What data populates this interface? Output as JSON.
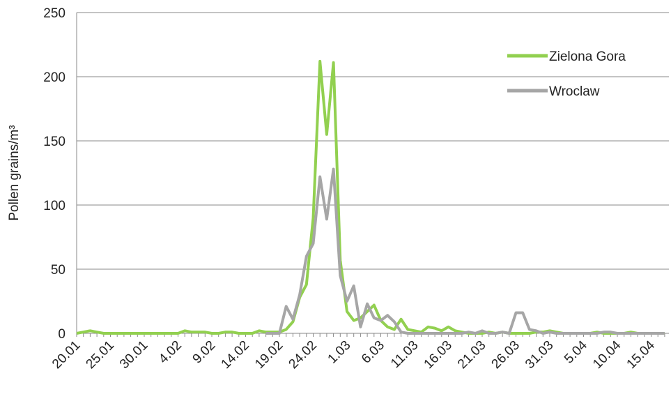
{
  "chart_data": {
    "type": "line",
    "ylabel": "Pollen grains/m³",
    "categories": [
      "20.01",
      null,
      null,
      null,
      null,
      "25.01",
      null,
      null,
      null,
      null,
      "30.01",
      null,
      null,
      null,
      null,
      "4.02",
      null,
      null,
      null,
      null,
      "9.02",
      null,
      null,
      null,
      null,
      "14.02",
      null,
      null,
      null,
      null,
      "19.02",
      null,
      null,
      null,
      null,
      "24.02",
      null,
      null,
      null,
      null,
      "1.03",
      null,
      null,
      null,
      null,
      "6.03",
      null,
      null,
      null,
      null,
      "11.03",
      null,
      null,
      null,
      null,
      "16.03",
      null,
      null,
      null,
      null,
      "21.03",
      null,
      null,
      null,
      null,
      "26.03",
      null,
      null,
      null,
      null,
      "31.03",
      null,
      null,
      null,
      null,
      "5.04",
      null,
      null,
      null,
      null,
      "10.04",
      null,
      null,
      null,
      null,
      "15.04",
      null,
      null
    ],
    "series": [
      {
        "name": "Zielona Gora",
        "color": "#92d050",
        "values": [
          0,
          1,
          2,
          1,
          0,
          0,
          0,
          0,
          0,
          0,
          0,
          0,
          0,
          0,
          0,
          0,
          2,
          1,
          1,
          1,
          0,
          0,
          1,
          1,
          0,
          0,
          0,
          2,
          1,
          1,
          1,
          3,
          9,
          28,
          38,
          90,
          212,
          155,
          211,
          57,
          17,
          10,
          12,
          17,
          22,
          10,
          5,
          3,
          11,
          3,
          2,
          1,
          5,
          4,
          2,
          5,
          2,
          1,
          0,
          0,
          0,
          1,
          0,
          1,
          0,
          0,
          0,
          0,
          1,
          1,
          2,
          1,
          0,
          0,
          0,
          0,
          0,
          1,
          0,
          0,
          0,
          0,
          1,
          0,
          0,
          0,
          0,
          0
        ]
      },
      {
        "name": "Wroclaw",
        "color": "#a6a6a6",
        "values": [
          null,
          null,
          null,
          null,
          null,
          null,
          null,
          null,
          null,
          null,
          null,
          null,
          null,
          null,
          null,
          null,
          null,
          null,
          null,
          null,
          null,
          null,
          null,
          null,
          null,
          null,
          null,
          null,
          0,
          0,
          0,
          21,
          11,
          30,
          60,
          70,
          122,
          89,
          128,
          45,
          25,
          37,
          5,
          23,
          12,
          10,
          14,
          9,
          1,
          0,
          0,
          0,
          0,
          0,
          0,
          0,
          0,
          0,
          1,
          0,
          2,
          0,
          0,
          1,
          0,
          16,
          16,
          3,
          2,
          0,
          1,
          0,
          0,
          0,
          0,
          0,
          0,
          0,
          1,
          1,
          0,
          0,
          0,
          0,
          0,
          0,
          0,
          0
        ]
      }
    ],
    "ylim": [
      0,
      250
    ],
    "yticks": [
      0,
      50,
      100,
      150,
      200,
      250
    ],
    "grid": true,
    "legend": "upper right"
  }
}
